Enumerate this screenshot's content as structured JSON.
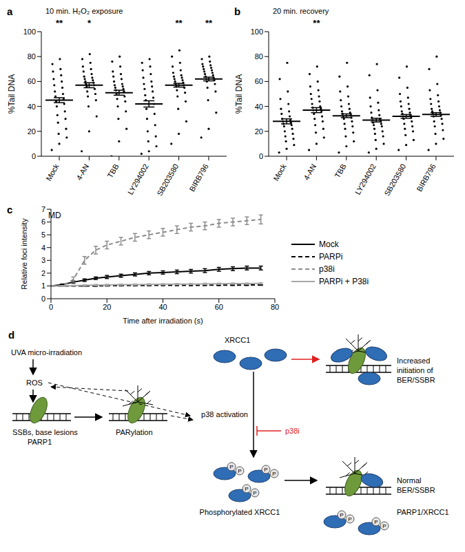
{
  "chart_data": [
    {
      "type": "scatter",
      "panel_label": "a",
      "title": "10 min. H₂O₂ exposure",
      "y_label": "%Tail DNA",
      "categories": [
        "Mock",
        "4-AN",
        "TBB",
        "LY294002",
        "SB203580",
        "BIRB796"
      ],
      "ylim": [
        0,
        100
      ],
      "yticks": [
        0,
        20,
        40,
        60,
        80,
        100
      ],
      "grid": false,
      "color": "#000000",
      "points": [
        [
          5,
          10,
          15,
          18,
          22,
          27,
          30,
          33,
          36,
          40,
          42,
          44,
          46,
          48,
          50,
          52,
          55,
          57,
          60,
          62,
          65,
          68,
          70,
          74,
          78
        ],
        [
          4,
          20,
          32,
          40,
          45,
          48,
          50,
          52,
          54,
          56,
          57,
          58,
          59,
          60,
          61,
          62,
          63,
          64,
          66,
          68,
          70,
          72,
          75,
          78,
          82
        ],
        [
          0,
          12,
          22,
          30,
          36,
          40,
          44,
          46,
          48,
          50,
          52,
          53,
          54,
          55,
          56,
          57,
          58,
          60,
          62,
          64,
          66,
          68,
          72,
          76,
          80
        ],
        [
          2,
          4,
          8,
          12,
          16,
          20,
          25,
          30,
          34,
          38,
          42,
          45,
          47,
          49,
          52,
          54,
          56,
          58,
          60,
          63,
          66,
          69,
          72,
          75,
          78
        ],
        [
          10,
          18,
          28,
          38,
          44,
          48,
          51,
          53,
          55,
          56,
          57,
          58,
          59,
          60,
          61,
          62,
          63,
          64,
          65,
          67,
          69,
          72,
          75,
          80,
          85
        ],
        [
          15,
          22,
          35,
          45,
          52,
          55,
          58,
          60,
          61,
          62,
          63,
          64,
          65,
          66,
          67,
          68,
          69,
          70,
          71,
          72,
          73,
          74,
          76,
          78,
          80
        ]
      ],
      "mean": [
        45,
        57,
        51,
        42,
        57,
        62
      ],
      "sem": [
        2,
        2,
        2,
        2.5,
        1.5,
        1.5
      ],
      "annotations": [
        "**",
        "*",
        null,
        null,
        "**",
        "**"
      ]
    },
    {
      "type": "scatter",
      "panel_label": "b",
      "title": "20 min. recovery",
      "y_label": "%Tail DNA",
      "categories": [
        "Mock",
        "4-AN",
        "TBB",
        "LY294002",
        "SB203580",
        "BIRB796"
      ],
      "ylim": [
        0,
        100
      ],
      "yticks": [
        0,
        20,
        40,
        60,
        80,
        100
      ],
      "grid": false,
      "color": "#000000",
      "points": [
        [
          3,
          6,
          9,
          12,
          14,
          16,
          18,
          20,
          22,
          24,
          25,
          26,
          27,
          28,
          29,
          30,
          32,
          34,
          36,
          38,
          42,
          46,
          52,
          62,
          75
        ],
        [
          5,
          10,
          15,
          19,
          22,
          25,
          28,
          30,
          32,
          34,
          36,
          37,
          38,
          39,
          40,
          42,
          44,
          46,
          48,
          50,
          53,
          56,
          60,
          66,
          72
        ],
        [
          3,
          8,
          12,
          16,
          19,
          22,
          24,
          26,
          28,
          30,
          31,
          32,
          33,
          34,
          35,
          36,
          38,
          40,
          42,
          45,
          48,
          52,
          56,
          64,
          75
        ],
        [
          3,
          6,
          10,
          13,
          16,
          18,
          20,
          22,
          24,
          25,
          26,
          27,
          28,
          29,
          30,
          31,
          33,
          35,
          37,
          40,
          43,
          47,
          53,
          65,
          74
        ],
        [
          5,
          9,
          13,
          17,
          20,
          22,
          24,
          26,
          28,
          30,
          31,
          32,
          33,
          34,
          35,
          36,
          38,
          40,
          42,
          44,
          47,
          50,
          55,
          63,
          72
        ],
        [
          5,
          10,
          14,
          18,
          21,
          24,
          26,
          28,
          30,
          32,
          33,
          34,
          35,
          36,
          37,
          38,
          40,
          42,
          44,
          46,
          49,
          53,
          58,
          70,
          80
        ]
      ],
      "mean": [
        28,
        37,
        32.5,
        29,
        32,
        33.5
      ],
      "sem": [
        2,
        2,
        1.5,
        1.5,
        1.5,
        1.5
      ],
      "annotations": [
        null,
        "**",
        null,
        null,
        null,
        null
      ]
    },
    {
      "type": "line",
      "panel_label": "c",
      "title": "MD",
      "x_label": "Time after irradiation (s)",
      "y_label": "Relative foci intensity",
      "x": [
        0,
        4,
        8,
        12,
        16,
        20,
        25,
        30,
        35,
        40,
        45,
        50,
        55,
        60,
        65,
        70,
        75
      ],
      "xlim": [
        0,
        80
      ],
      "xticks": [
        0,
        20,
        40,
        60,
        80
      ],
      "ylim": [
        0,
        7
      ],
      "yticks": [
        0,
        1,
        2,
        3,
        4,
        5,
        6,
        7
      ],
      "legend": "right",
      "grid": false,
      "series": [
        {
          "name": "Mock",
          "color": "#000000",
          "line_style": "solid",
          "values": [
            1,
            1.1,
            1.3,
            1.45,
            1.6,
            1.7,
            1.8,
            1.9,
            2.0,
            2.05,
            2.1,
            2.15,
            2.2,
            2.3,
            2.35,
            2.4,
            2.4
          ],
          "errors": [
            0,
            0.05,
            0.08,
            0.1,
            0.1,
            0.12,
            0.12,
            0.12,
            0.13,
            0.13,
            0.14,
            0.14,
            0.15,
            0.15,
            0.15,
            0.15,
            0.15
          ]
        },
        {
          "name": "PARPi",
          "color": "#000000",
          "line_style": "dashed",
          "values": [
            1,
            1,
            1,
            1,
            1,
            1.02,
            1.03,
            1.03,
            1.04,
            1.05,
            1.05,
            1.05,
            1.06,
            1.06,
            1.07,
            1.07,
            1.08
          ],
          "errors": [
            0,
            0.02,
            0.02,
            0.02,
            0.03,
            0.03,
            0.03,
            0.03,
            0.03,
            0.03,
            0.03,
            0.03,
            0.03,
            0.03,
            0.03,
            0.03,
            0.03
          ]
        },
        {
          "name": "p38i",
          "color": "#8c8c8c",
          "line_style": "dashed",
          "values": [
            1,
            1,
            1.5,
            3,
            3.8,
            4.2,
            4.5,
            4.8,
            5.0,
            5.2,
            5.4,
            5.6,
            5.7,
            5.9,
            6.0,
            6.1,
            6.2
          ],
          "errors": [
            0,
            0,
            0.2,
            0.3,
            0.3,
            0.3,
            0.3,
            0.3,
            0.3,
            0.3,
            0.3,
            0.3,
            0.3,
            0.3,
            0.3,
            0.3,
            0.35
          ]
        },
        {
          "name": "PARPi + P38i",
          "color": "#a6a6a6",
          "line_style": "solid",
          "values": [
            1,
            1,
            1.02,
            1.05,
            1.07,
            1.08,
            1.1,
            1.1,
            1.12,
            1.13,
            1.14,
            1.15,
            1.16,
            1.17,
            1.18,
            1.18,
            1.2
          ],
          "errors": [
            0,
            0.03,
            0.04,
            0.05,
            0.05,
            0.05,
            0.05,
            0.05,
            0.05,
            0.05,
            0.05,
            0.05,
            0.05,
            0.05,
            0.05,
            0.05,
            0.05
          ]
        }
      ]
    }
  ],
  "diagram": {
    "panel_label": "d",
    "uva": "UVA micro-irradiation",
    "ros": "ROS",
    "lesions": "SSBs, base lesions",
    "parp1": "PARP1",
    "parylation": "PARylation",
    "xrcc1": "XRCC1",
    "p38_activation": "p38 activation",
    "p38i": "p38i",
    "increased": [
      "Increased",
      "initiation of BER/SSBR"
    ],
    "phosphorylated": "Phosphorylated XRCC1",
    "normal": [
      "Normal",
      "BER/SSBR"
    ],
    "complex": "PARP1/XRCC1",
    "phospho": "P"
  }
}
